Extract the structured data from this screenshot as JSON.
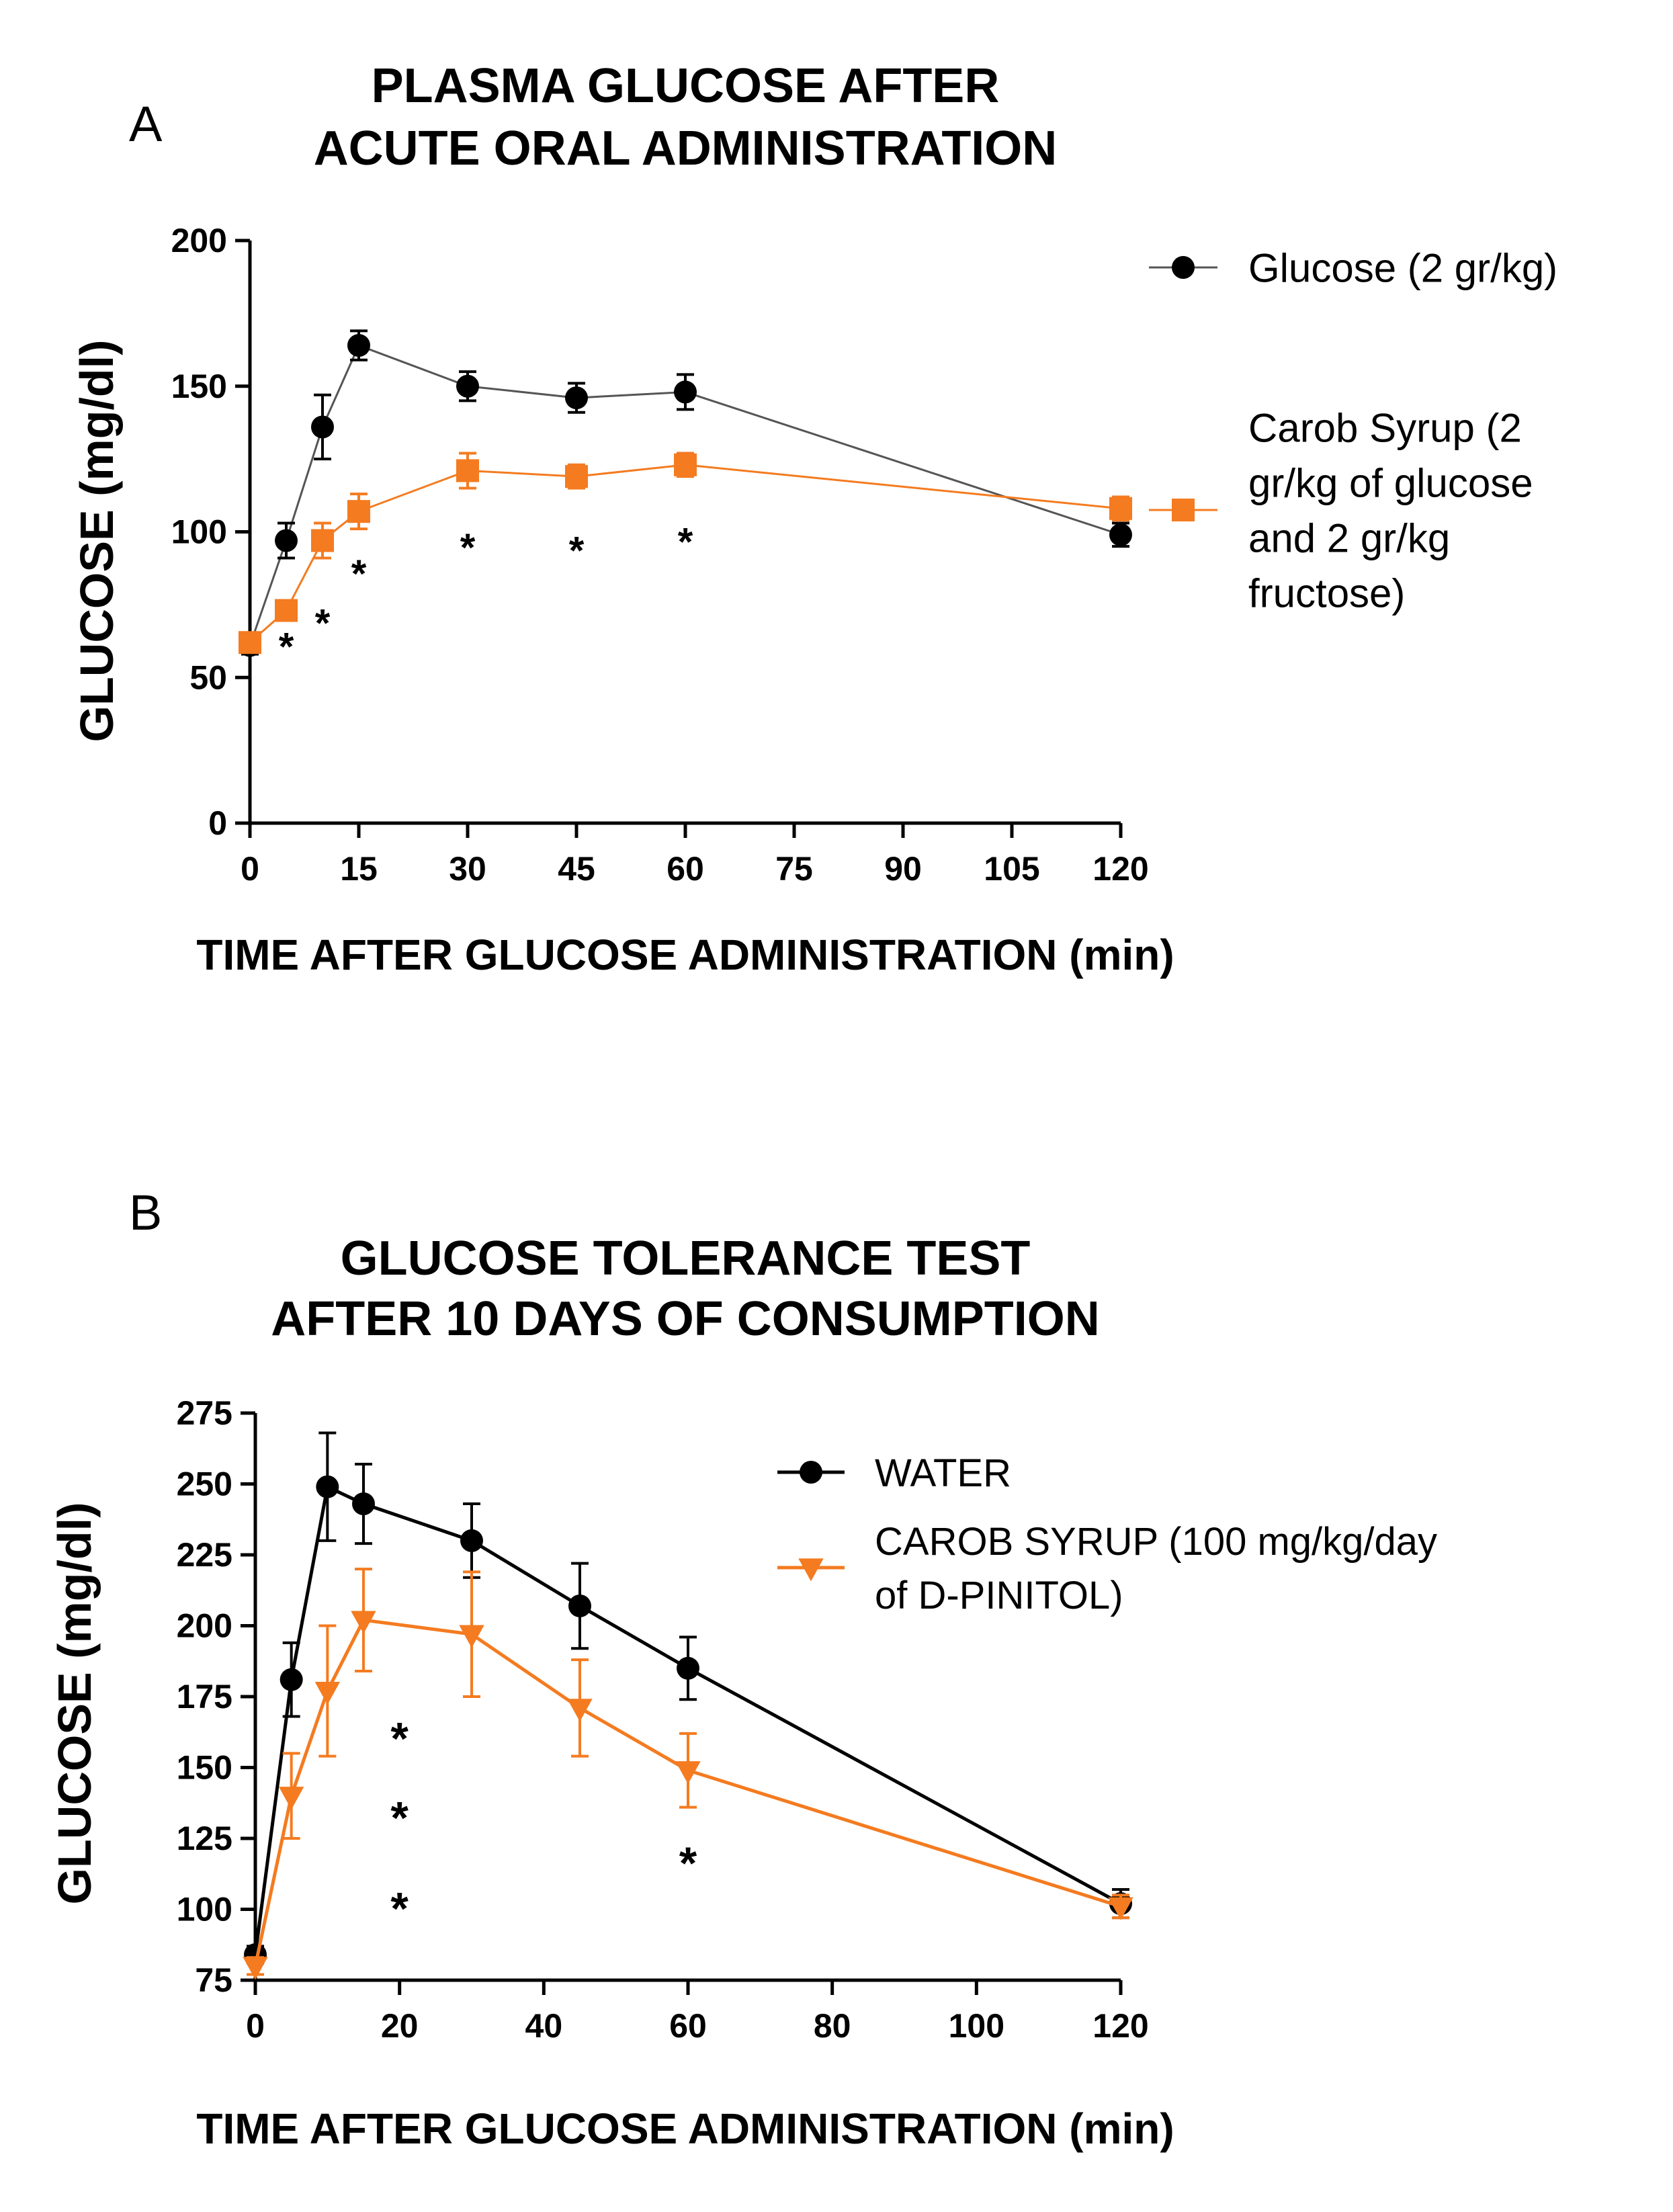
{
  "colors": {
    "black": "#000000",
    "orange": "#f47b20",
    "black_line": "#555555"
  },
  "chart_data": [
    {
      "panel_label": "A",
      "type": "line",
      "title_lines": [
        "PLASMA GLUCOSE AFTER",
        "ACUTE ORAL ADMINISTRATION"
      ],
      "xlabel": "TIME AFTER GLUCOSE ADMINISTRATION (min)",
      "ylabel": "GLUCOSE (mg/dl)",
      "xlim": [
        0,
        120
      ],
      "ylim": [
        0,
        200
      ],
      "xticks": [
        0,
        15,
        30,
        45,
        60,
        75,
        90,
        105,
        120
      ],
      "xtick_labels": [
        "0",
        "15",
        "30",
        "45",
        "60",
        "75",
        "90",
        "105",
        "120"
      ],
      "yticks": [
        0,
        50,
        100,
        150,
        200
      ],
      "ytick_labels": [
        "0",
        "50",
        "100",
        "150",
        "200"
      ],
      "legend_position": "top-right",
      "series": [
        {
          "name": "Glucose (2 gr/kg)",
          "legend_lines": [
            "Glucose (2 gr/kg)"
          ],
          "marker": "circle",
          "color": "#000000",
          "line_color": "#555555",
          "x": [
            0,
            5,
            10,
            15,
            30,
            45,
            60,
            120
          ],
          "y": [
            61,
            97,
            136,
            164,
            150,
            146,
            148,
            99
          ],
          "err": [
            3,
            6,
            11,
            5,
            5,
            5,
            6,
            4
          ]
        },
        {
          "name": "Carob Syrup (2 gr/kg of glucose and 2 gr/kg fructose)",
          "legend_lines": [
            "Carob Syrup (2",
            "gr/kg of glucose",
            "and 2 gr/kg",
            "fructose)"
          ],
          "marker": "square",
          "color": "#f47b20",
          "line_color": "#f47b20",
          "x": [
            0,
            5,
            10,
            15,
            30,
            45,
            60,
            120
          ],
          "y": [
            62,
            73,
            97,
            107,
            121,
            119,
            123,
            108
          ],
          "err": [
            3,
            3,
            6,
            6,
            6,
            4,
            4,
            4
          ]
        }
      ],
      "annotations": [
        {
          "text": "*",
          "x": 5,
          "y": 62
        },
        {
          "text": "*",
          "x": 10,
          "y": 70
        },
        {
          "text": "*",
          "x": 15,
          "y": 87
        },
        {
          "text": "*",
          "x": 30,
          "y": 96
        },
        {
          "text": "*",
          "x": 45,
          "y": 95
        },
        {
          "text": "*",
          "x": 60,
          "y": 98
        }
      ]
    },
    {
      "panel_label": "B",
      "type": "line",
      "title_lines": [
        "GLUCOSE TOLERANCE TEST",
        "AFTER 10 DAYS OF CONSUMPTION"
      ],
      "xlabel": "TIME AFTER GLUCOSE ADMINISTRATION (min)",
      "ylabel": "GLUCOSE (mg/dl)",
      "xlim": [
        0,
        120
      ],
      "ylim": [
        75,
        275
      ],
      "xticks": [
        0,
        20,
        40,
        60,
        80,
        100,
        120
      ],
      "xtick_labels": [
        "0",
        "20",
        "40",
        "60",
        "80",
        "100",
        "120"
      ],
      "yticks": [
        75,
        100,
        125,
        150,
        175,
        200,
        225,
        250,
        275
      ],
      "ytick_labels": [
        "75",
        "100",
        "125",
        "150",
        "175",
        "200",
        "225",
        "250",
        "275"
      ],
      "legend_position": "top-right",
      "series": [
        {
          "name": "WATER",
          "legend_lines": [
            "WATER"
          ],
          "marker": "circle",
          "color": "#000000",
          "line_color": "#000000",
          "x": [
            0,
            5,
            10,
            15,
            30,
            45,
            60,
            120
          ],
          "y": [
            84,
            181,
            249,
            243,
            230,
            207,
            185,
            102
          ],
          "err": [
            3,
            13,
            19,
            14,
            13,
            15,
            11,
            5
          ]
        },
        {
          "name": "CAROB SYRUP (100 mg/kg/day of D-PINITOL)",
          "legend_lines": [
            "CAROB SYRUP (100 mg/kg/day",
            "of D-PINITOL)"
          ],
          "marker": "triangle-down",
          "color": "#f47b20",
          "line_color": "#f47b20",
          "x": [
            0,
            5,
            10,
            15,
            30,
            45,
            60,
            120
          ],
          "y": [
            80,
            140,
            177,
            202,
            197,
            171,
            149,
            101
          ],
          "err": [
            3,
            15,
            23,
            18,
            22,
            17,
            13,
            4
          ]
        }
      ],
      "annotations": [
        {
          "text": "*",
          "x": 20,
          "y": 102
        },
        {
          "text": "*",
          "x": 20,
          "y": 134
        },
        {
          "text": "*",
          "x": 20,
          "y": 162
        },
        {
          "text": "*",
          "x": 60,
          "y": 118
        }
      ]
    }
  ]
}
